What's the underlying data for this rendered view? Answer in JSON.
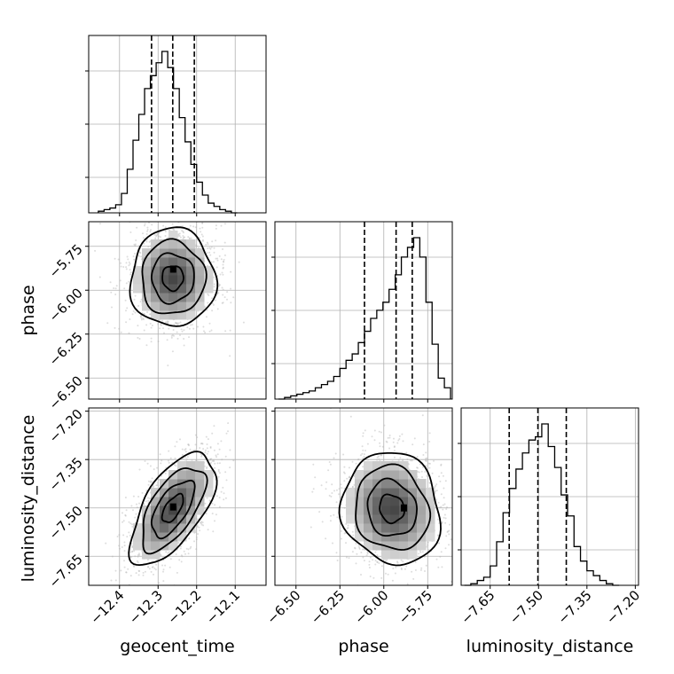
{
  "chart_data": {
    "type": "corner",
    "title": "",
    "parameters": [
      "geocent_time",
      "phase",
      "luminosity_distance"
    ],
    "ranges": {
      "geocent_time": [
        -12.48,
        -12.02
      ],
      "phase": [
        -6.62,
        -5.61
      ],
      "luminosity_distance": [
        -7.74,
        -7.19
      ]
    },
    "ticks": {
      "geocent_time": {
        "values": [
          -12.4,
          -12.3,
          -12.2,
          -12.1
        ],
        "labels": [
          "−12.4",
          "−12.3",
          "−12.2",
          "−12.1"
        ]
      },
      "phase": {
        "values": [
          -6.5,
          -6.25,
          -6.0,
          -5.75
        ],
        "labels": [
          "−6.50",
          "−6.25",
          "−6.00",
          "−5.75"
        ]
      },
      "luminosity_distance": {
        "values": [
          -7.65,
          -7.5,
          -7.35,
          -7.2
        ],
        "labels": [
          "−7.65",
          "−7.50",
          "−7.35",
          "−7.20"
        ]
      }
    },
    "grid": true,
    "histograms": {
      "geocent_time": {
        "edges": [
          -12.455,
          -12.44,
          -12.425,
          -12.41,
          -12.395,
          -12.38,
          -12.365,
          -12.35,
          -12.335,
          -12.32,
          -12.305,
          -12.29,
          -12.275,
          -12.26,
          -12.245,
          -12.23,
          -12.215,
          -12.2,
          -12.185,
          -12.17,
          -12.155,
          -12.14,
          -12.125,
          -12.11,
          -12.095
        ],
        "counts": [
          0.01,
          0.02,
          0.03,
          0.05,
          0.12,
          0.27,
          0.45,
          0.61,
          0.77,
          0.85,
          0.93,
          1.0,
          0.9,
          0.77,
          0.59,
          0.44,
          0.3,
          0.19,
          0.11,
          0.06,
          0.04,
          0.02,
          0.01,
          0.0
        ]
      },
      "phase": {
        "edges": [
          -6.6,
          -6.565,
          -6.53,
          -6.495,
          -6.46,
          -6.425,
          -6.39,
          -6.355,
          -6.32,
          -6.285,
          -6.25,
          -6.215,
          -6.18,
          -6.145,
          -6.11,
          -6.075,
          -6.04,
          -6.005,
          -5.97,
          -5.935,
          -5.9,
          -5.865,
          -5.83,
          -5.795,
          -5.76,
          -5.725,
          -5.69,
          -5.655,
          -5.62
        ],
        "counts": [
          0.0,
          0.01,
          0.02,
          0.03,
          0.04,
          0.05,
          0.07,
          0.09,
          0.11,
          0.14,
          0.19,
          0.24,
          0.28,
          0.35,
          0.42,
          0.5,
          0.55,
          0.6,
          0.68,
          0.77,
          0.88,
          0.94,
          1.0,
          0.88,
          0.6,
          0.34,
          0.13,
          0.07
        ]
      },
      "luminosity_distance": {
        "edges": [
          -7.73,
          -7.71,
          -7.69,
          -7.67,
          -7.65,
          -7.63,
          -7.61,
          -7.59,
          -7.57,
          -7.55,
          -7.53,
          -7.51,
          -7.49,
          -7.47,
          -7.45,
          -7.43,
          -7.41,
          -7.39,
          -7.37,
          -7.35,
          -7.33,
          -7.31,
          -7.29,
          -7.27,
          -7.25
        ],
        "counts": [
          0.0,
          0.01,
          0.03,
          0.05,
          0.12,
          0.27,
          0.45,
          0.6,
          0.72,
          0.82,
          0.9,
          0.92,
          1.0,
          0.86,
          0.73,
          0.56,
          0.43,
          0.24,
          0.15,
          0.09,
          0.06,
          0.03,
          0.01,
          0.0
        ]
      }
    },
    "quantiles": {
      "geocent_time": [
        -12.317,
        -12.262,
        -12.206
      ],
      "phase": [
        -6.11,
        -5.93,
        -5.838
      ],
      "luminosity_distance": [
        -7.591,
        -7.502,
        -7.414
      ]
    },
    "pairs": [
      {
        "x": "geocent_time",
        "y": "phase",
        "center": [
          -12.262,
          -5.93
        ],
        "sigma": [
          0.055,
          0.14
        ],
        "rho": 0.0,
        "peak": [
          -12.262,
          -5.88
        ]
      },
      {
        "x": "geocent_time",
        "y": "luminosity_distance",
        "center": [
          -12.262,
          -7.502
        ],
        "sigma": [
          0.055,
          0.087
        ],
        "rho": 0.62,
        "peak": [
          -12.262,
          -7.497
        ]
      },
      {
        "x": "phase",
        "y": "luminosity_distance",
        "center": [
          -5.955,
          -7.502
        ],
        "sigma": [
          0.14,
          0.087
        ],
        "rho": -0.1,
        "peak": [
          -5.888,
          -7.5
        ]
      }
    ],
    "contour_levels": [
      0.5,
      1.0,
      1.5,
      2.0
    ],
    "contour_color": "#000000",
    "point_color": "#b4b4b4",
    "grid_color": "#b0b0b0"
  }
}
